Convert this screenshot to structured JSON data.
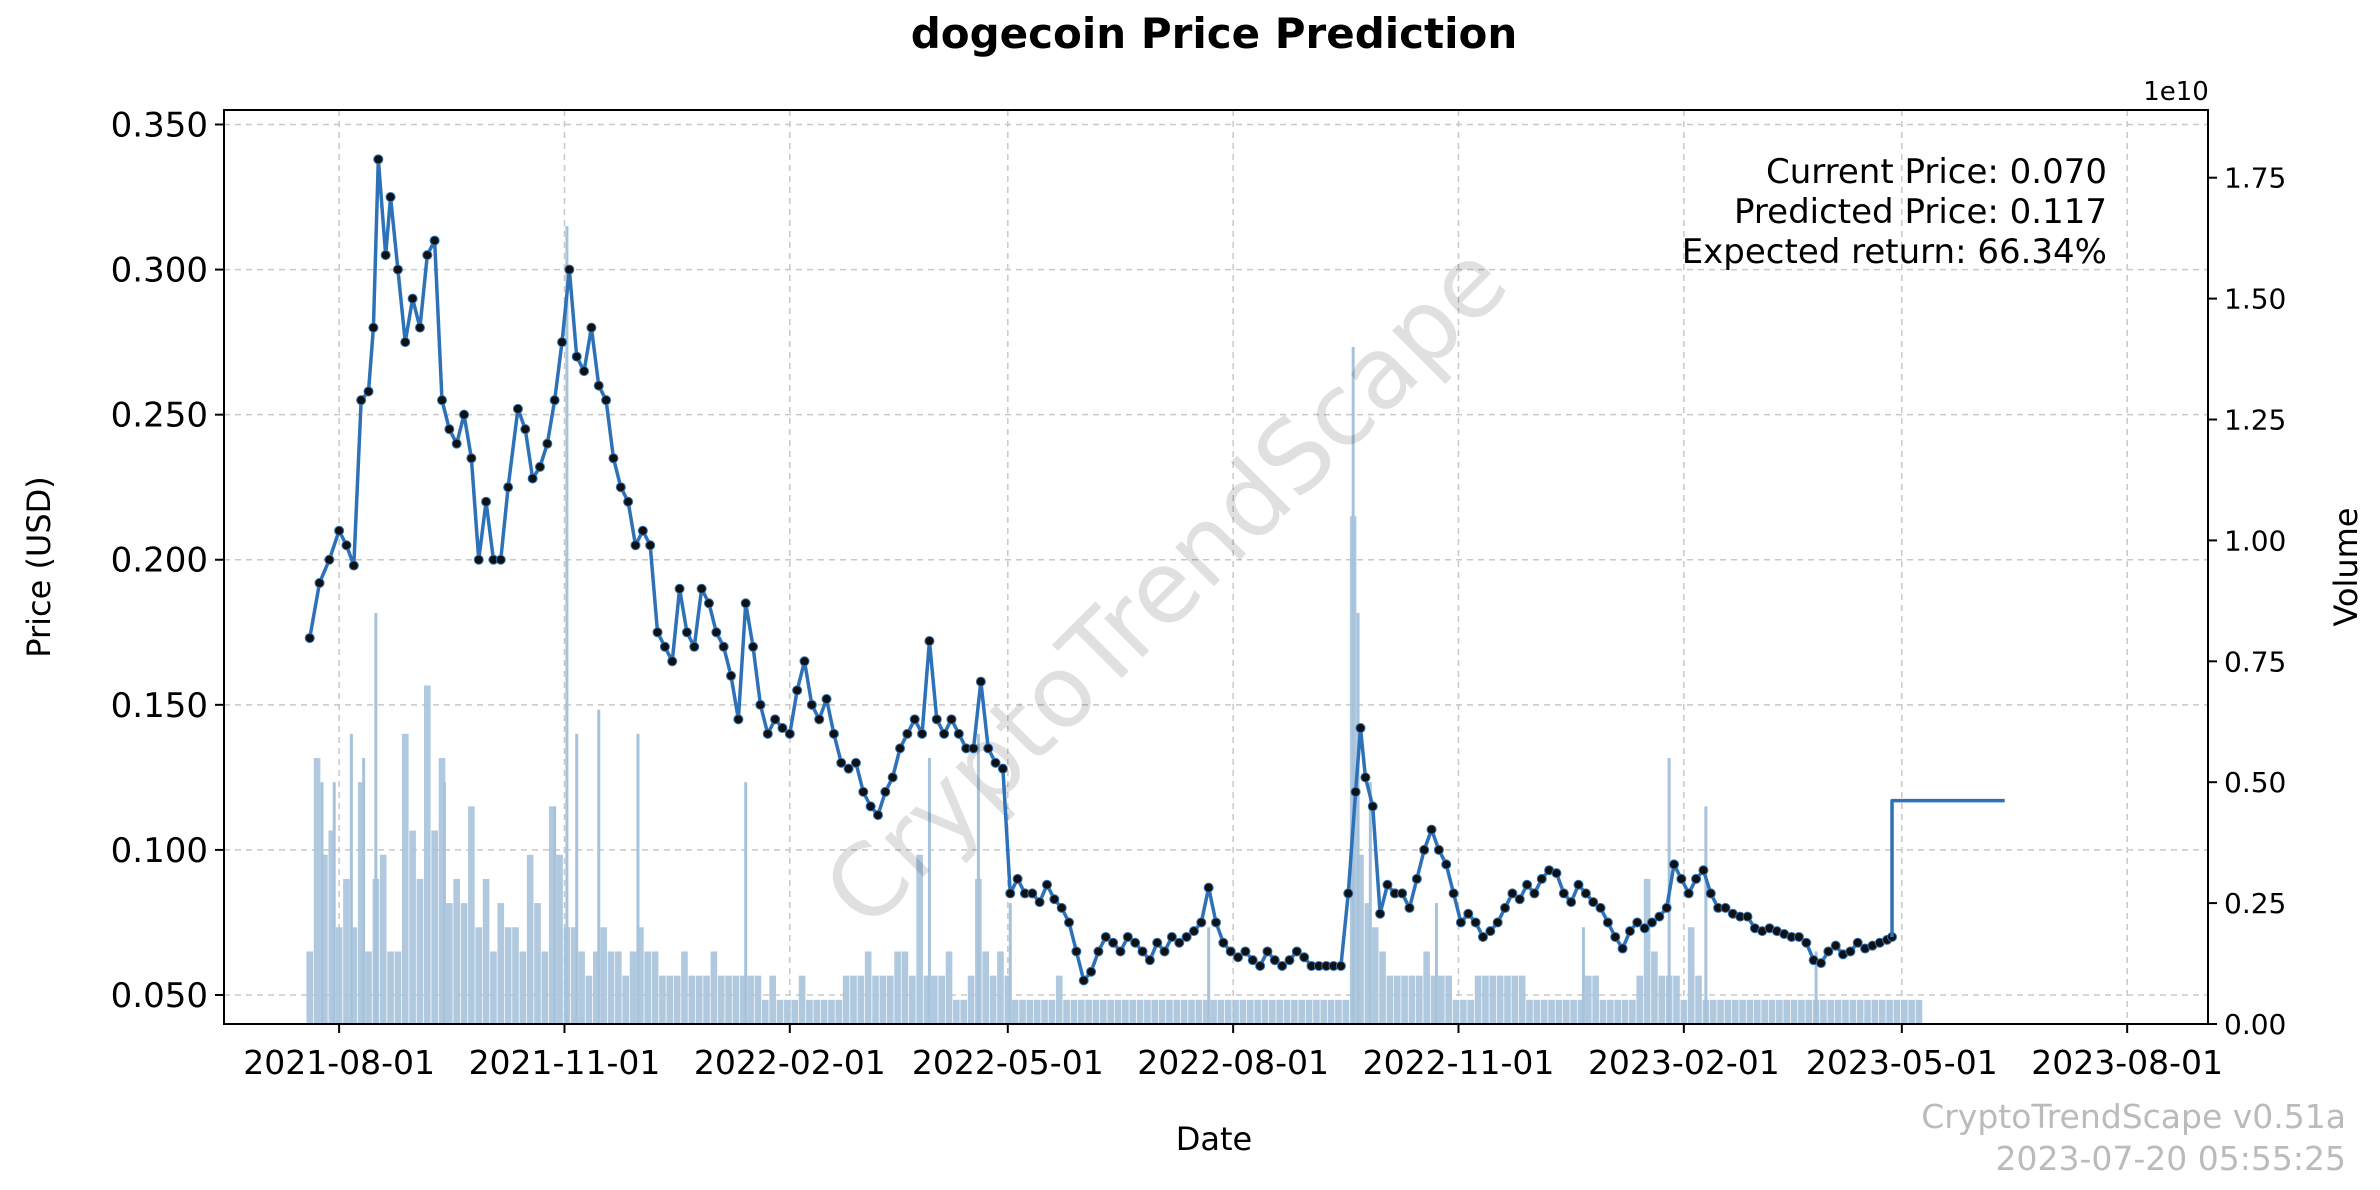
{
  "chart_data": {
    "type": "line",
    "title": "dogecoin Price Prediction",
    "xlabel": "Date",
    "ylabel": "Price (USD)",
    "y2label": "Volume",
    "y2_exponent": "1e10",
    "grid": true,
    "ylim": [
      0.04,
      0.355
    ],
    "y_ticks": [
      0.05,
      0.1,
      0.15,
      0.2,
      0.25,
      0.3,
      0.35
    ],
    "y_tick_labels": [
      "0.050",
      "0.100",
      "0.150",
      "0.200",
      "0.250",
      "0.300",
      "0.350"
    ],
    "y2lim": [
      0,
      1.89
    ],
    "y2_ticks": [
      0,
      0.25,
      0.5,
      0.75,
      1.0,
      1.25,
      1.5,
      1.75
    ],
    "y2_tick_labels": [
      "0.00",
      "0.25",
      "0.50",
      "0.75",
      "1.00",
      "1.25",
      "1.50",
      "1.75"
    ],
    "xlim_days": [
      -35,
      775
    ],
    "x_ticks_days": [
      12,
      104,
      196,
      285,
      377,
      469,
      561,
      650,
      742
    ],
    "x_tick_labels": [
      "2021-08-01",
      "2021-11-01",
      "2022-02-01",
      "2022-05-01",
      "2022-08-01",
      "2022-11-01",
      "2023-02-01",
      "2023-05-01",
      "2023-08-01"
    ],
    "x_origin_date": "2021-07-20",
    "series": [
      {
        "name": "Price",
        "style": "line+markers",
        "color": "#2d72b8",
        "points": [
          [
            0,
            0.173
          ],
          [
            4,
            0.192
          ],
          [
            8,
            0.2
          ],
          [
            12,
            0.21
          ],
          [
            15,
            0.205
          ],
          [
            18,
            0.198
          ],
          [
            21,
            0.255
          ],
          [
            24,
            0.258
          ],
          [
            26,
            0.28
          ],
          [
            28,
            0.338
          ],
          [
            31,
            0.305
          ],
          [
            33,
            0.325
          ],
          [
            36,
            0.3
          ],
          [
            39,
            0.275
          ],
          [
            42,
            0.29
          ],
          [
            45,
            0.28
          ],
          [
            48,
            0.305
          ],
          [
            51,
            0.31
          ],
          [
            54,
            0.255
          ],
          [
            57,
            0.245
          ],
          [
            60,
            0.24
          ],
          [
            63,
            0.25
          ],
          [
            66,
            0.235
          ],
          [
            69,
            0.2
          ],
          [
            72,
            0.22
          ],
          [
            75,
            0.2
          ],
          [
            78,
            0.2
          ],
          [
            81,
            0.225
          ],
          [
            85,
            0.252
          ],
          [
            88,
            0.245
          ],
          [
            91,
            0.228
          ],
          [
            94,
            0.232
          ],
          [
            97,
            0.24
          ],
          [
            100,
            0.255
          ],
          [
            103,
            0.275
          ],
          [
            106,
            0.3
          ],
          [
            109,
            0.27
          ],
          [
            112,
            0.265
          ],
          [
            115,
            0.28
          ],
          [
            118,
            0.26
          ],
          [
            121,
            0.255
          ],
          [
            124,
            0.235
          ],
          [
            127,
            0.225
          ],
          [
            130,
            0.22
          ],
          [
            133,
            0.205
          ],
          [
            136,
            0.21
          ],
          [
            139,
            0.205
          ],
          [
            142,
            0.175
          ],
          [
            145,
            0.17
          ],
          [
            148,
            0.165
          ],
          [
            151,
            0.19
          ],
          [
            154,
            0.175
          ],
          [
            157,
            0.17
          ],
          [
            160,
            0.19
          ],
          [
            163,
            0.185
          ],
          [
            166,
            0.175
          ],
          [
            169,
            0.17
          ],
          [
            172,
            0.16
          ],
          [
            175,
            0.145
          ],
          [
            178,
            0.185
          ],
          [
            181,
            0.17
          ],
          [
            184,
            0.15
          ],
          [
            187,
            0.14
          ],
          [
            190,
            0.145
          ],
          [
            193,
            0.142
          ],
          [
            196,
            0.14
          ],
          [
            199,
            0.155
          ],
          [
            202,
            0.165
          ],
          [
            205,
            0.15
          ],
          [
            208,
            0.145
          ],
          [
            211,
            0.152
          ],
          [
            214,
            0.14
          ],
          [
            217,
            0.13
          ],
          [
            220,
            0.128
          ],
          [
            223,
            0.13
          ],
          [
            226,
            0.12
          ],
          [
            229,
            0.115
          ],
          [
            232,
            0.112
          ],
          [
            235,
            0.12
          ],
          [
            238,
            0.125
          ],
          [
            241,
            0.135
          ],
          [
            244,
            0.14
          ],
          [
            247,
            0.145
          ],
          [
            250,
            0.14
          ],
          [
            253,
            0.172
          ],
          [
            256,
            0.145
          ],
          [
            259,
            0.14
          ],
          [
            262,
            0.145
          ],
          [
            265,
            0.14
          ],
          [
            268,
            0.135
          ],
          [
            271,
            0.135
          ],
          [
            274,
            0.158
          ],
          [
            277,
            0.135
          ],
          [
            280,
            0.13
          ],
          [
            283,
            0.128
          ],
          [
            286,
            0.085
          ],
          [
            289,
            0.09
          ],
          [
            292,
            0.085
          ],
          [
            295,
            0.085
          ],
          [
            298,
            0.082
          ],
          [
            301,
            0.088
          ],
          [
            304,
            0.083
          ],
          [
            307,
            0.08
          ],
          [
            310,
            0.075
          ],
          [
            313,
            0.065
          ],
          [
            316,
            0.055
          ],
          [
            319,
            0.058
          ],
          [
            322,
            0.065
          ],
          [
            325,
            0.07
          ],
          [
            328,
            0.068
          ],
          [
            331,
            0.065
          ],
          [
            334,
            0.07
          ],
          [
            337,
            0.068
          ],
          [
            340,
            0.065
          ],
          [
            343,
            0.062
          ],
          [
            346,
            0.068
          ],
          [
            349,
            0.065
          ],
          [
            352,
            0.07
          ],
          [
            355,
            0.068
          ],
          [
            358,
            0.07
          ],
          [
            361,
            0.072
          ],
          [
            364,
            0.075
          ],
          [
            367,
            0.087
          ],
          [
            370,
            0.075
          ],
          [
            373,
            0.068
          ],
          [
            376,
            0.065
          ],
          [
            379,
            0.063
          ],
          [
            382,
            0.065
          ],
          [
            385,
            0.062
          ],
          [
            388,
            0.06
          ],
          [
            391,
            0.065
          ],
          [
            394,
            0.062
          ],
          [
            397,
            0.06
          ],
          [
            400,
            0.062
          ],
          [
            403,
            0.065
          ],
          [
            406,
            0.063
          ],
          [
            409,
            0.06
          ],
          [
            412,
            0.06
          ],
          [
            415,
            0.06
          ],
          [
            418,
            0.06
          ],
          [
            421,
            0.06
          ],
          [
            424,
            0.085
          ],
          [
            427,
            0.12
          ],
          [
            429,
            0.142
          ],
          [
            431,
            0.125
          ],
          [
            434,
            0.115
          ],
          [
            437,
            0.078
          ],
          [
            440,
            0.088
          ],
          [
            443,
            0.085
          ],
          [
            446,
            0.085
          ],
          [
            449,
            0.08
          ],
          [
            452,
            0.09
          ],
          [
            455,
            0.1
          ],
          [
            458,
            0.107
          ],
          [
            461,
            0.1
          ],
          [
            464,
            0.095
          ],
          [
            467,
            0.085
          ],
          [
            470,
            0.075
          ],
          [
            473,
            0.078
          ],
          [
            476,
            0.075
          ],
          [
            479,
            0.07
          ],
          [
            482,
            0.072
          ],
          [
            485,
            0.075
          ],
          [
            488,
            0.08
          ],
          [
            491,
            0.085
          ],
          [
            494,
            0.083
          ],
          [
            497,
            0.088
          ],
          [
            500,
            0.085
          ],
          [
            503,
            0.09
          ],
          [
            506,
            0.093
          ],
          [
            509,
            0.092
          ],
          [
            512,
            0.085
          ],
          [
            515,
            0.082
          ],
          [
            518,
            0.088
          ],
          [
            521,
            0.085
          ],
          [
            524,
            0.082
          ],
          [
            527,
            0.08
          ],
          [
            530,
            0.075
          ],
          [
            533,
            0.07
          ],
          [
            536,
            0.066
          ],
          [
            539,
            0.072
          ],
          [
            542,
            0.075
          ],
          [
            545,
            0.073
          ],
          [
            548,
            0.075
          ],
          [
            551,
            0.077
          ],
          [
            554,
            0.08
          ],
          [
            557,
            0.095
          ],
          [
            560,
            0.09
          ],
          [
            563,
            0.085
          ],
          [
            566,
            0.09
          ],
          [
            569,
            0.093
          ],
          [
            572,
            0.085
          ],
          [
            575,
            0.08
          ],
          [
            578,
            0.08
          ],
          [
            581,
            0.078
          ],
          [
            584,
            0.077
          ],
          [
            587,
            0.077
          ],
          [
            590,
            0.073
          ],
          [
            593,
            0.072
          ],
          [
            596,
            0.073
          ],
          [
            599,
            0.072
          ],
          [
            602,
            0.071
          ],
          [
            605,
            0.07
          ],
          [
            608,
            0.07
          ],
          [
            611,
            0.068
          ],
          [
            614,
            0.062
          ],
          [
            617,
            0.061
          ],
          [
            620,
            0.065
          ],
          [
            623,
            0.067
          ],
          [
            626,
            0.064
          ],
          [
            629,
            0.065
          ],
          [
            632,
            0.068
          ],
          [
            635,
            0.066
          ],
          [
            638,
            0.067
          ],
          [
            641,
            0.068
          ],
          [
            644,
            0.069
          ],
          [
            646,
            0.07
          ]
        ],
        "note": "Historical daily close"
      },
      {
        "name": "Predicted",
        "style": "line",
        "color": "#2d72b8",
        "points": [
          [
            646,
            0.07
          ],
          [
            646,
            0.117
          ],
          [
            692,
            0.117
          ]
        ]
      }
    ],
    "volume": {
      "name": "Volume",
      "color": "#a7c3dc",
      "values_1e10": [
        0.15,
        0.55,
        0.35,
        0.4,
        0.2,
        0.3,
        0.2,
        0.5,
        0.15,
        0.3,
        0.35,
        0.15,
        0.15,
        0.6,
        0.4,
        0.3,
        0.7,
        0.4,
        0.55,
        0.25,
        0.3,
        0.25,
        0.45,
        0.2,
        0.3,
        0.15,
        0.25,
        0.2,
        0.2,
        0.15,
        0.35,
        0.25,
        0.15,
        0.45,
        0.35,
        0.2,
        0.2,
        0.15,
        0.1,
        0.15,
        0.2,
        0.15,
        0.15,
        0.1,
        0.15,
        0.2,
        0.15,
        0.15,
        0.1,
        0.1,
        0.1,
        0.15,
        0.1,
        0.1,
        0.1,
        0.15,
        0.1,
        0.1,
        0.1,
        0.1,
        0.1,
        0.1,
        0.05,
        0.1,
        0.05,
        0.05,
        0.05,
        0.1,
        0.05,
        0.05,
        0.05,
        0.05,
        0.05,
        0.1,
        0.1,
        0.1,
        0.15,
        0.1,
        0.1,
        0.1,
        0.15,
        0.15,
        0.1,
        0.35,
        0.1,
        0.1,
        0.1,
        0.15,
        0.05,
        0.05,
        0.1,
        0.3,
        0.15,
        0.1,
        0.15,
        0.1,
        0.05,
        0.05,
        0.05,
        0.05,
        0.05,
        0.05,
        0.1,
        0.05,
        0.05,
        0.05,
        0.05,
        0.05,
        0.05,
        0.05,
        0.05,
        0.05,
        0.05,
        0.05,
        0.05,
        0.05,
        0.05,
        0.05,
        0.05,
        0.05,
        0.05,
        0.05,
        0.05,
        0.05,
        0.05,
        0.05,
        0.05,
        0.05,
        0.05,
        0.05,
        0.05,
        0.05,
        0.05,
        0.05,
        0.05,
        0.05,
        0.05,
        0.05,
        0.05,
        0.05,
        0.05,
        0.05,
        1.05,
        0.35,
        0.25,
        0.2,
        0.15,
        0.1,
        0.1,
        0.1,
        0.1,
        0.1,
        0.15,
        0.1,
        0.1,
        0.1,
        0.05,
        0.05,
        0.05,
        0.1,
        0.1,
        0.1,
        0.1,
        0.1,
        0.1,
        0.1,
        0.05,
        0.05,
        0.05,
        0.05,
        0.05,
        0.05,
        0.05,
        0.05,
        0.1,
        0.1,
        0.05,
        0.05,
        0.05,
        0.05,
        0.05,
        0.1,
        0.3,
        0.15,
        0.1,
        0.1,
        0.1,
        0.05,
        0.2,
        0.1,
        0.05,
        0.05,
        0.05,
        0.05,
        0.05,
        0.05,
        0.05,
        0.05,
        0.05,
        0.05,
        0.05,
        0.05,
        0.05,
        0.05,
        0.05,
        0.05,
        0.05,
        0.05,
        0.05,
        0.05,
        0.05,
        0.05,
        0.05,
        0.05,
        0.05,
        0.05,
        0.05,
        0.05,
        0.05,
        0.05
      ],
      "peaks_1e10": [
        [
          5,
          0.5
        ],
        [
          10,
          0.5
        ],
        [
          17,
          0.6
        ],
        [
          22,
          0.55
        ],
        [
          27,
          0.85
        ],
        [
          55,
          0.5
        ],
        [
          100,
          0.45
        ],
        [
          105,
          1.65
        ],
        [
          109,
          0.6
        ],
        [
          118,
          0.65
        ],
        [
          134,
          0.6
        ],
        [
          178,
          0.5
        ],
        [
          253,
          0.55
        ],
        [
          273,
          0.6
        ],
        [
          286,
          0.25
        ],
        [
          367,
          0.2
        ],
        [
          426,
          1.4
        ],
        [
          428,
          0.85
        ],
        [
          433,
          0.5
        ],
        [
          460,
          0.25
        ],
        [
          520,
          0.2
        ],
        [
          555,
          0.55
        ],
        [
          570,
          0.45
        ],
        [
          615,
          0.15
        ]
      ]
    },
    "annotations": {
      "current_price": "Current Price: 0.070",
      "predicted_price": "Predicted Price: 0.117",
      "expected_return": "Expected return: 66.34%"
    },
    "watermark": "CryptoTrendScape",
    "footer": {
      "version": "CryptoTrendScape v0.51a",
      "timestamp": "2023-07-20 05:55:25"
    }
  }
}
